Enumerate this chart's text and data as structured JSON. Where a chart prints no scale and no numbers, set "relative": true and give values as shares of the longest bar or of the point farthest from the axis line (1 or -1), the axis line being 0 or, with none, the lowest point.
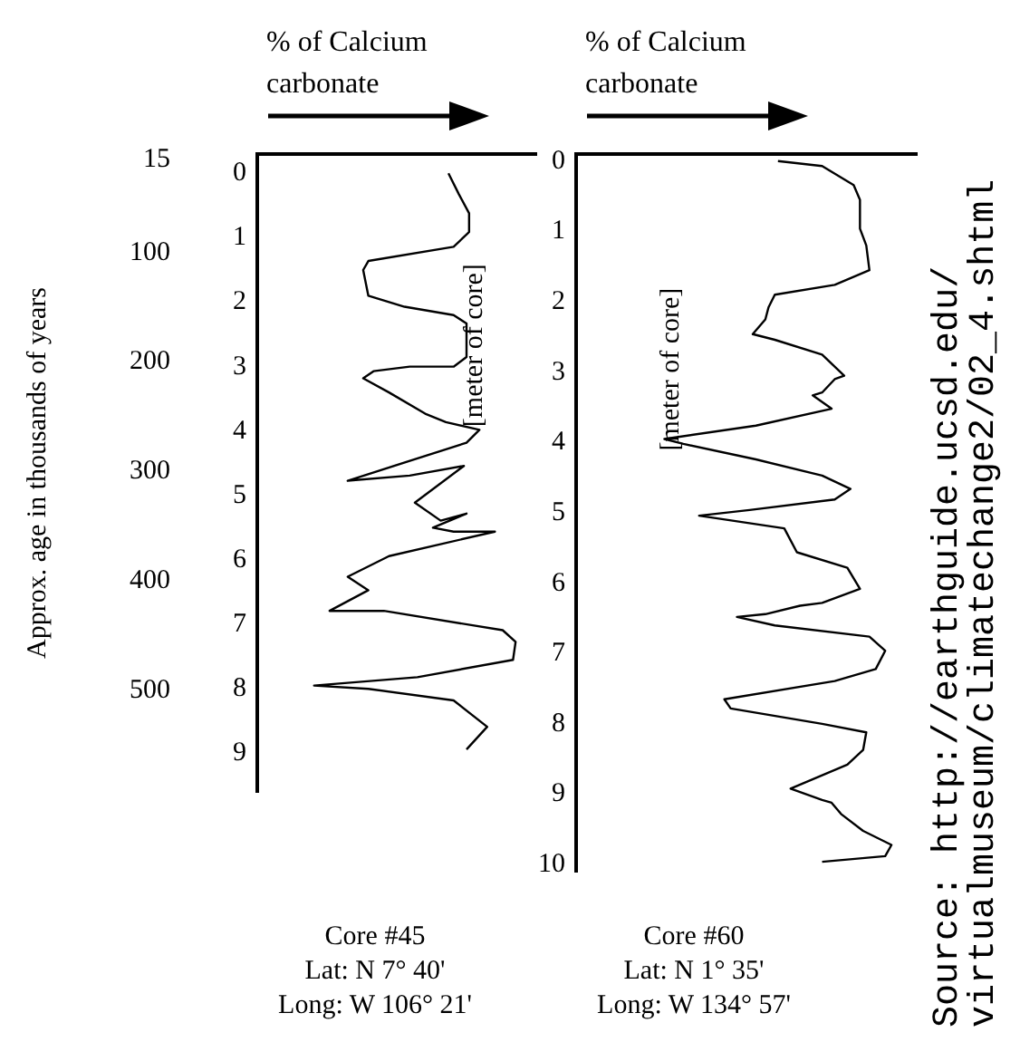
{
  "chart_data": [
    {
      "type": "line",
      "orientation": "horizontal",
      "xlabel": "% of Calcium carbonate",
      "ylabel": "[meter of core]",
      "y2label": "Approx. age in thousands of years",
      "relative": true,
      "grid": false,
      "legend": false,
      "marker": "none",
      "line_style": "solid",
      "ylim": [
        9.6,
        -0.3
      ],
      "yticks": [
        0,
        1,
        2,
        3,
        4,
        5,
        6,
        7,
        8,
        9
      ],
      "y2lim": [
        593,
        10
      ],
      "y2ticks": [
        15,
        100,
        200,
        300,
        400,
        500
      ],
      "series": [
        {
          "color": "#000000",
          "x": [
            0.0,
            0.32,
            0.62,
            0.91,
            1.14,
            1.36,
            1.5,
            1.9,
            2.07,
            2.2,
            2.33,
            2.85,
            3.0,
            3.0,
            3.07,
            3.18,
            3.4,
            3.73,
            3.86,
            3.98,
            4.18,
            4.77,
            4.69,
            4.54,
            5.11,
            5.39,
            5.28,
            5.5,
            5.56,
            5.56,
            5.94,
            6.26,
            6.47,
            6.79,
            6.79,
            7.09,
            7.27,
            7.55,
            7.82,
            7.95,
            8.0,
            8.18,
            8.59,
            8.94
          ],
          "values": [
            0.74,
            0.78,
            0.82,
            0.82,
            0.76,
            0.43,
            0.41,
            0.43,
            0.57,
            0.76,
            0.81,
            0.81,
            0.76,
            0.59,
            0.45,
            0.41,
            0.51,
            0.65,
            0.73,
            0.86,
            0.81,
            0.35,
            0.59,
            0.8,
            0.61,
            0.71,
            0.81,
            0.68,
            0.76,
            0.92,
            0.51,
            0.35,
            0.43,
            0.28,
            0.49,
            0.95,
            1.0,
            0.99,
            0.62,
            0.22,
            0.43,
            0.76,
            0.89,
            0.81
          ]
        }
      ],
      "annotations": [
        "Core #45",
        "Lat: N 7° 40'",
        "Long: W 106° 21'"
      ]
    },
    {
      "type": "line",
      "orientation": "horizontal",
      "xlabel": "% of Calcium carbonate",
      "ylabel": "[meter of core]",
      "relative": true,
      "grid": false,
      "legend": false,
      "marker": "none",
      "line_style": "solid",
      "ylim": [
        10.1,
        -0.1
      ],
      "yticks": [
        0,
        1,
        2,
        3,
        4,
        5,
        6,
        7,
        8,
        9,
        10
      ],
      "series": [
        {
          "color": "#000000",
          "x": [
            0.0,
            0.07,
            0.34,
            0.55,
            0.96,
            1.2,
            1.55,
            1.76,
            1.9,
            2.08,
            2.25,
            2.46,
            2.54,
            2.75,
            3.05,
            3.1,
            3.29,
            3.33,
            3.52,
            3.76,
            3.95,
            4.02,
            4.24,
            4.47,
            4.66,
            4.81,
            4.96,
            5.04,
            5.22,
            5.56,
            5.78,
            6.08,
            6.28,
            6.32,
            6.44,
            6.48,
            6.6,
            6.76,
            6.96,
            7.22,
            7.39,
            7.65,
            7.78,
            8.0,
            8.12,
            8.37,
            8.58,
            8.92,
            9.08,
            9.12,
            9.28,
            9.52,
            9.72,
            9.88,
            9.96
          ],
          "values": [
            0.64,
            0.78,
            0.88,
            0.9,
            0.9,
            0.92,
            0.93,
            0.82,
            0.63,
            0.61,
            0.6,
            0.56,
            0.63,
            0.78,
            0.85,
            0.82,
            0.78,
            0.75,
            0.81,
            0.57,
            0.28,
            0.34,
            0.57,
            0.78,
            0.87,
            0.82,
            0.55,
            0.39,
            0.66,
            0.7,
            0.86,
            0.9,
            0.78,
            0.71,
            0.6,
            0.51,
            0.63,
            0.93,
            0.98,
            0.95,
            0.82,
            0.47,
            0.49,
            0.78,
            0.92,
            0.91,
            0.86,
            0.68,
            0.78,
            0.81,
            0.84,
            0.91,
            1.0,
            0.98,
            0.78
          ]
        }
      ],
      "annotations": [
        "Core #60",
        "Lat: N 1° 35'",
        "Long: W 134° 57'",
        "Source: http://earthguide.ucsd.edu/",
        "virtualmuseum/climatechange2/02_4.shtml"
      ]
    }
  ]
}
